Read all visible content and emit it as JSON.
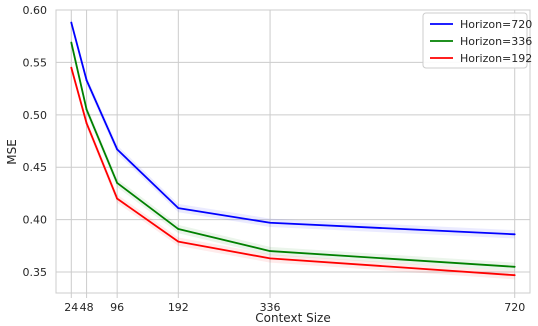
{
  "chart_data": {
    "type": "line",
    "title": "",
    "xlabel": "Context Size",
    "ylabel": "MSE",
    "x": [
      24,
      48,
      96,
      192,
      336,
      720
    ],
    "x_ticks": [
      "24",
      "48",
      "96",
      "192",
      "336",
      "720"
    ],
    "y_ticks": [
      "0.35",
      "0.40",
      "0.45",
      "0.50",
      "0.55",
      "0.60"
    ],
    "xlim": [
      0,
      744
    ],
    "ylim": [
      0.33,
      0.6
    ],
    "grid": true,
    "legend_position": "top-right",
    "series": [
      {
        "name": "Horizon=720",
        "color": "#0000ff",
        "values": [
          0.588,
          0.533,
          0.467,
          0.411,
          0.397,
          0.386
        ]
      },
      {
        "name": "Horizon=336",
        "color": "#008000",
        "values": [
          0.569,
          0.505,
          0.435,
          0.391,
          0.37,
          0.355
        ]
      },
      {
        "name": "Horizon=192",
        "color": "#ff0000",
        "values": [
          0.545,
          0.492,
          0.42,
          0.379,
          0.363,
          0.347
        ]
      }
    ]
  }
}
